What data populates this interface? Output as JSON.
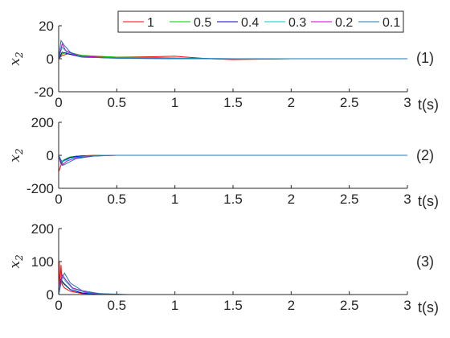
{
  "chart_data": [
    {
      "type": "line",
      "panel_label": "(1)",
      "xlabel": "t(s)",
      "ylabel": "x",
      "ylabel_sub": "2",
      "xlim": [
        0,
        3
      ],
      "ylim": [
        -20,
        20
      ],
      "xticks": [
        "0",
        "0.5",
        "1",
        "1.5",
        "2",
        "2.5",
        "3"
      ],
      "yticks": [
        "-20",
        "0",
        "20"
      ],
      "legend": {
        "placement": "top-right",
        "orientation": "horizontal"
      },
      "series": [
        {
          "name": "1",
          "color": "#ff0000",
          "x": [
            0,
            0.03,
            0.08,
            0.2,
            0.5,
            0.8,
            1.0,
            1.1,
            1.3,
            1.5,
            2.0,
            2.5,
            3.0
          ],
          "y": [
            0,
            2,
            3,
            1.5,
            1,
            1.2,
            1.5,
            1,
            0,
            -0.5,
            0,
            0,
            0
          ]
        },
        {
          "name": "0.5",
          "color": "#00cc00",
          "x": [
            0,
            0.03,
            0.08,
            0.2,
            0.5,
            0.8,
            1.0,
            1.3,
            1.6,
            2.0,
            3.0
          ],
          "y": [
            0,
            3,
            4,
            2,
            1,
            0.8,
            0.5,
            0,
            -0.3,
            0,
            0
          ]
        },
        {
          "name": "0.4",
          "color": "#0000cc",
          "x": [
            0,
            0.03,
            0.08,
            0.2,
            0.5,
            1.0,
            1.5,
            2.0,
            3.0
          ],
          "y": [
            0,
            4,
            3,
            1,
            0.5,
            0.2,
            0,
            0,
            0
          ]
        },
        {
          "name": "0.3",
          "color": "#00cccc",
          "x": [
            0,
            0.03,
            0.07,
            0.2,
            0.5,
            1.0,
            1.5,
            3.0
          ],
          "y": [
            0,
            7,
            4,
            1,
            0.5,
            0.2,
            0,
            0
          ]
        },
        {
          "name": "0.2",
          "color": "#cc00cc",
          "x": [
            0,
            0.03,
            0.06,
            0.15,
            0.4,
            1.0,
            3.0
          ],
          "y": [
            0,
            9,
            5,
            2,
            0.5,
            0,
            0
          ]
        },
        {
          "name": "0.1",
          "color": "#1f77b4",
          "x": [
            0,
            0.02,
            0.05,
            0.1,
            0.2,
            0.5,
            1.0,
            3.0
          ],
          "y": [
            0,
            11,
            8,
            4,
            1,
            0.3,
            0,
            0
          ]
        }
      ]
    },
    {
      "type": "line",
      "panel_label": "(2)",
      "xlabel": "t(s)",
      "ylabel": "x",
      "ylabel_sub": "2",
      "xlim": [
        0,
        3
      ],
      "ylim": [
        -200,
        200
      ],
      "xticks": [
        "0",
        "0.5",
        "1",
        "1.5",
        "2",
        "2.5",
        "3"
      ],
      "yticks": [
        "-200",
        "0",
        "200"
      ],
      "series": [
        {
          "name": "1",
          "color": "#ff0000",
          "x": [
            0,
            0.01,
            0.03,
            0.08,
            0.15,
            0.3,
            0.5,
            3.0
          ],
          "y": [
            -100,
            -80,
            -40,
            -15,
            -5,
            0,
            0,
            0
          ]
        },
        {
          "name": "0.5",
          "color": "#00cc00",
          "x": [
            0,
            0.02,
            0.05,
            0.1,
            0.2,
            0.4,
            3.0
          ],
          "y": [
            0,
            -40,
            -25,
            -10,
            -3,
            0,
            0
          ]
        },
        {
          "name": "0.4",
          "color": "#0000cc",
          "x": [
            0,
            0.02,
            0.05,
            0.1,
            0.2,
            0.4,
            3.0
          ],
          "y": [
            0,
            -50,
            -30,
            -12,
            -4,
            0,
            0
          ]
        },
        {
          "name": "0.3",
          "color": "#00cccc",
          "x": [
            0,
            0.03,
            0.06,
            0.12,
            0.25,
            0.4,
            3.0
          ],
          "y": [
            0,
            -40,
            -30,
            -15,
            -5,
            0,
            0
          ]
        },
        {
          "name": "0.2",
          "color": "#cc00cc",
          "x": [
            0,
            0.03,
            0.07,
            0.15,
            0.3,
            0.5,
            3.0
          ],
          "y": [
            0,
            -60,
            -35,
            -15,
            -4,
            0,
            0
          ]
        },
        {
          "name": "0.1",
          "color": "#1f77b4",
          "x": [
            0,
            0.04,
            0.08,
            0.15,
            0.3,
            0.5,
            3.0
          ],
          "y": [
            0,
            -60,
            -45,
            -20,
            -5,
            0,
            0
          ]
        }
      ]
    },
    {
      "type": "line",
      "panel_label": "(3)",
      "xlabel": "t(s)",
      "ylabel": "x",
      "ylabel_sub": "2",
      "xlim": [
        0,
        3
      ],
      "ylim": [
        0,
        200
      ],
      "xticks": [
        "0",
        "0.5",
        "1",
        "1.5",
        "2",
        "2.5",
        "3"
      ],
      "yticks": [
        "0",
        "100",
        "200"
      ],
      "series": [
        {
          "name": "1",
          "color": "#ff0000",
          "x": [
            0,
            0.005,
            0.01,
            0.02,
            0.03,
            0.05,
            0.1,
            0.2,
            0.4,
            3.0
          ],
          "y": [
            40,
            100,
            20,
            90,
            30,
            20,
            10,
            3,
            0,
            0
          ]
        },
        {
          "name": "0.5",
          "color": "#00cc00",
          "x": [
            0,
            0.02,
            0.05,
            0.1,
            0.2,
            0.4,
            3.0
          ],
          "y": [
            0,
            40,
            30,
            15,
            5,
            0,
            0
          ]
        },
        {
          "name": "0.4",
          "color": "#0000cc",
          "x": [
            0,
            0.02,
            0.05,
            0.1,
            0.2,
            0.4,
            3.0
          ],
          "y": [
            0,
            45,
            32,
            15,
            5,
            0,
            0
          ]
        },
        {
          "name": "0.3",
          "color": "#00cccc",
          "x": [
            0,
            0.03,
            0.06,
            0.12,
            0.25,
            0.45,
            3.0
          ],
          "y": [
            0,
            55,
            40,
            18,
            5,
            0,
            0
          ]
        },
        {
          "name": "0.2",
          "color": "#cc00cc",
          "x": [
            0,
            0.03,
            0.06,
            0.12,
            0.25,
            0.45,
            3.0
          ],
          "y": [
            0,
            60,
            45,
            20,
            6,
            0,
            0
          ]
        },
        {
          "name": "0.1",
          "color": "#1f77b4",
          "x": [
            0,
            0.03,
            0.05,
            0.1,
            0.2,
            0.35,
            0.6,
            3.0
          ],
          "y": [
            0,
            50,
            65,
            35,
            12,
            3,
            0,
            0
          ]
        }
      ]
    }
  ]
}
